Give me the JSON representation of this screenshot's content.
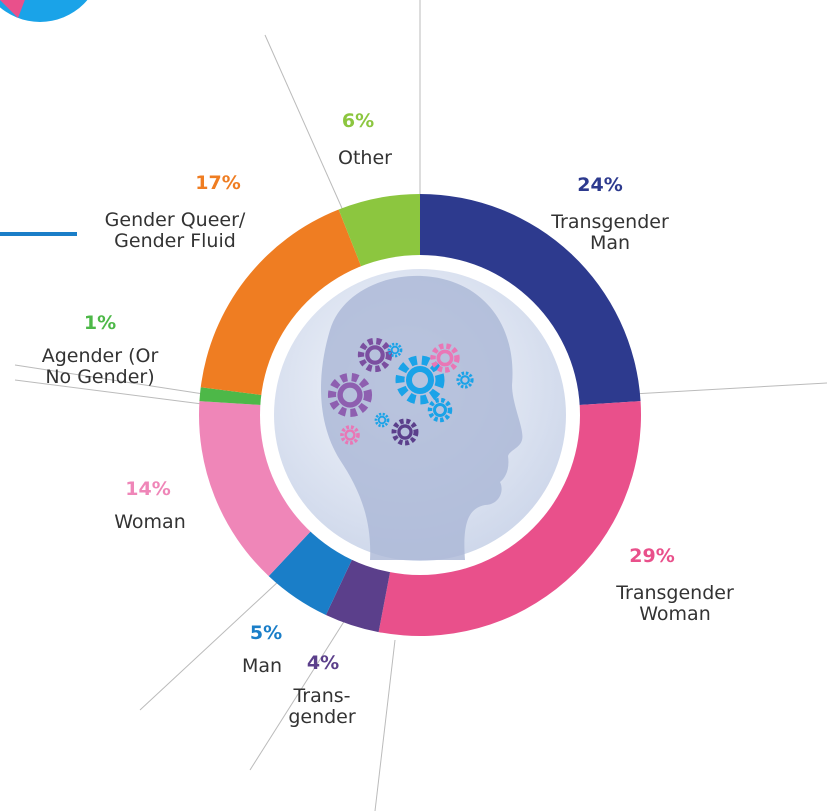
{
  "chart_data": {
    "type": "donut",
    "categories": [
      "Transgender\nMan",
      "Transgender\nWoman",
      "Trans-\ngender",
      "Man",
      "Woman",
      "Agender (Or\nNo Gender)",
      "Gender Queer/\nGender Fluid",
      "Other"
    ],
    "values": [
      24,
      29,
      4,
      5,
      14,
      1,
      17,
      6
    ],
    "value_labels": [
      "24%",
      "29%",
      "4%",
      "5%",
      "14%",
      "1%",
      "17%",
      "6%"
    ],
    "colors": [
      "#2d3a8e",
      "#e9508b",
      "#5b3f8b",
      "#1a7ec8",
      "#ef86b8",
      "#4db848",
      "#ef7d22",
      "#8cc63f"
    ]
  }
}
